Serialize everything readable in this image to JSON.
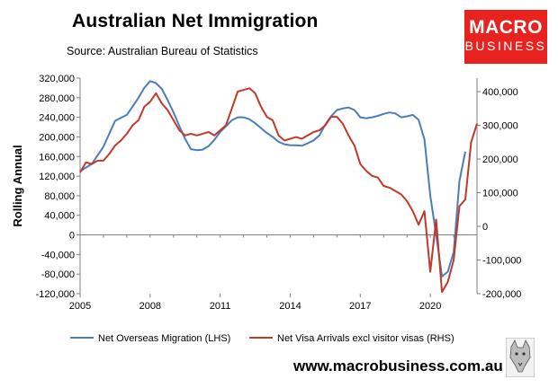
{
  "header": {
    "title": "Australian Net Immigration",
    "subtitle": "Source: Australian Bureau of Statistics"
  },
  "logo": {
    "line1": "MACRO",
    "line2": "BUSINESS"
  },
  "footer": {
    "url": "www.macrobusiness.com.au"
  },
  "colors": {
    "nom": "#4a7ebb",
    "visa": "#c0392b",
    "logo_bg": "#e8231f"
  },
  "chart_data": {
    "type": "line",
    "ylabel": "Rolling Annual",
    "x_range": [
      2005,
      2022
    ],
    "x_ticks": [
      2005,
      2008,
      2011,
      2014,
      2017,
      2020
    ],
    "x_tick_labels": [
      "2005",
      "2008",
      "2011",
      "2014",
      "2017",
      "2020"
    ],
    "y_left": {
      "range": [
        -120000,
        320000
      ],
      "ticks": [
        320000,
        280000,
        240000,
        200000,
        160000,
        120000,
        80000,
        40000,
        0,
        -40000,
        -80000,
        -120000
      ],
      "tick_labels": [
        "320,000",
        "280,000",
        "240,000",
        "200,000",
        "160,000",
        "120,000",
        "80,000",
        "40,000",
        "0",
        "-40,000",
        "-80,000",
        "-120,000"
      ]
    },
    "y_right": {
      "range": [
        -200000,
        440000
      ],
      "ticks": [
        400000,
        300000,
        200000,
        100000,
        0,
        -100000,
        -200000
      ],
      "tick_labels": [
        "400,000",
        "300,000",
        "200,000",
        "100,000",
        "0",
        "-100,000",
        "-200,000"
      ]
    },
    "series": [
      {
        "name": "Net Overseas Migration (LHS)",
        "axis": "left",
        "color": "#4a7ebb",
        "x": [
          2005.0,
          2005.5,
          2006.0,
          2006.5,
          2007.0,
          2007.25,
          2007.5,
          2007.75,
          2008.0,
          2008.25,
          2008.5,
          2008.75,
          2009.0,
          2009.25,
          2009.5,
          2009.75,
          2010.0,
          2010.25,
          2010.5,
          2010.75,
          2011.0,
          2011.25,
          2011.5,
          2011.75,
          2012.0,
          2012.25,
          2012.5,
          2012.75,
          2013.0,
          2013.25,
          2013.5,
          2013.75,
          2014.0,
          2014.25,
          2014.5,
          2014.75,
          2015.0,
          2015.25,
          2015.5,
          2015.75,
          2016.0,
          2016.25,
          2016.5,
          2016.75,
          2017.0,
          2017.25,
          2017.5,
          2017.75,
          2018.0,
          2018.25,
          2018.5,
          2018.75,
          2019.0,
          2019.25,
          2019.5,
          2019.75,
          2020.0,
          2020.25,
          2020.5,
          2020.75,
          2021.0,
          2021.25,
          2021.5
        ],
        "values": [
          130000,
          145000,
          180000,
          233000,
          245000,
          262000,
          280000,
          300000,
          314000,
          310000,
          298000,
          275000,
          250000,
          222000,
          196000,
          175000,
          173000,
          174000,
          181000,
          194000,
          210000,
          222000,
          234000,
          240000,
          240000,
          236000,
          228000,
          218000,
          208000,
          200000,
          190000,
          185000,
          183000,
          183000,
          182000,
          187000,
          193000,
          203000,
          225000,
          242000,
          255000,
          258000,
          260000,
          255000,
          240000,
          238000,
          240000,
          243000,
          247000,
          250000,
          248000,
          240000,
          242000,
          245000,
          235000,
          195000,
          80000,
          0,
          -85000,
          -75000,
          -35000,
          110000,
          170000
        ]
      },
      {
        "name": "Net Visa Arrivals excl visitor visas (RHS)",
        "axis": "right",
        "color": "#c0392b",
        "x": [
          2005.0,
          2005.25,
          2005.5,
          2005.75,
          2006.0,
          2006.25,
          2006.5,
          2006.75,
          2007.0,
          2007.25,
          2007.5,
          2007.75,
          2008.0,
          2008.25,
          2008.5,
          2008.75,
          2009.0,
          2009.25,
          2009.5,
          2009.75,
          2010.0,
          2010.25,
          2010.5,
          2010.75,
          2011.0,
          2011.25,
          2011.5,
          2011.75,
          2012.0,
          2012.25,
          2012.5,
          2012.75,
          2013.0,
          2013.25,
          2013.5,
          2013.75,
          2014.0,
          2014.25,
          2014.5,
          2014.75,
          2015.0,
          2015.25,
          2015.5,
          2015.75,
          2016.0,
          2016.25,
          2016.5,
          2016.75,
          2017.0,
          2017.25,
          2017.5,
          2017.75,
          2018.0,
          2018.25,
          2018.5,
          2018.75,
          2019.0,
          2019.25,
          2019.5,
          2019.75,
          2020.0,
          2020.25,
          2020.5,
          2020.75,
          2021.0,
          2021.25,
          2021.5,
          2021.75,
          2022.0
        ],
        "values": [
          160000,
          190000,
          185000,
          195000,
          195000,
          215000,
          240000,
          255000,
          275000,
          300000,
          315000,
          355000,
          370000,
          395000,
          365000,
          345000,
          315000,
          285000,
          270000,
          275000,
          270000,
          275000,
          280000,
          270000,
          285000,
          300000,
          350000,
          400000,
          405000,
          410000,
          395000,
          355000,
          325000,
          315000,
          270000,
          255000,
          260000,
          265000,
          260000,
          270000,
          280000,
          285000,
          300000,
          325000,
          325000,
          305000,
          270000,
          240000,
          185000,
          165000,
          150000,
          145000,
          120000,
          115000,
          105000,
          95000,
          75000,
          45000,
          5000,
          45000,
          -135000,
          20000,
          -195000,
          -165000,
          -100000,
          60000,
          80000,
          250000,
          305000
        ]
      }
    ],
    "legend_position": "bottom",
    "grid": false
  }
}
